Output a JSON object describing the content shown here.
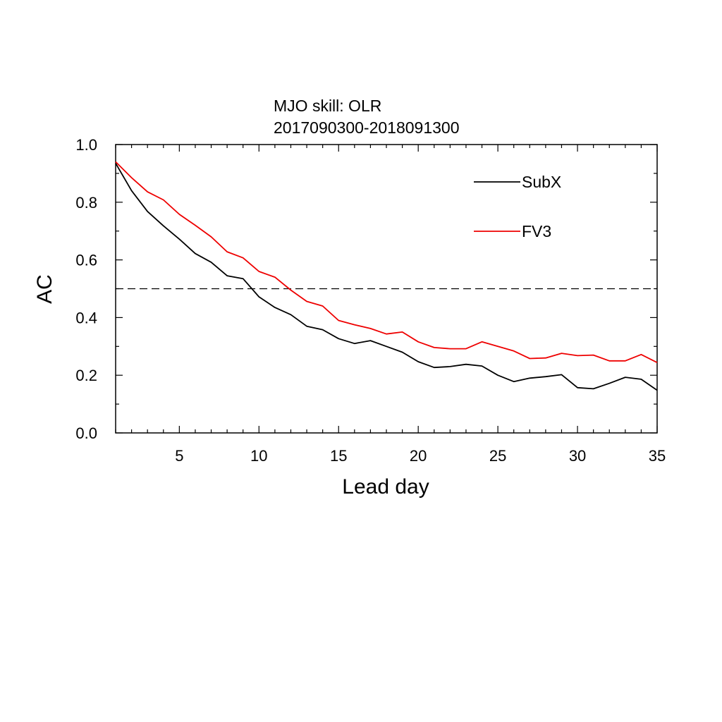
{
  "chart_data": {
    "type": "line",
    "title": "MJO skill: OLR",
    "subtitle": "2017090300-2018091300",
    "xlabel": "Lead day",
    "ylabel": "AC",
    "xlim": [
      1,
      35
    ],
    "ylim": [
      0.0,
      1.0
    ],
    "x_ticks": [
      5,
      10,
      15,
      20,
      25,
      30,
      35
    ],
    "y_ticks": [
      "0.0",
      "0.2",
      "0.4",
      "0.6",
      "0.8",
      "1.0"
    ],
    "reference_line": {
      "y": 0.5,
      "style": "dashed",
      "color": "#000000"
    },
    "legend_position": "top-right",
    "grid": false,
    "x": [
      1,
      2,
      3,
      4,
      5,
      6,
      7,
      8,
      9,
      10,
      11,
      12,
      13,
      14,
      15,
      16,
      17,
      18,
      19,
      20,
      21,
      22,
      23,
      24,
      25,
      26,
      27,
      28,
      29,
      30,
      31,
      32,
      33,
      34,
      35
    ],
    "series": [
      {
        "name": "SubX",
        "color": "#000000",
        "values": [
          0.935,
          0.84,
          0.768,
          0.718,
          0.672,
          0.622,
          0.592,
          0.545,
          0.535,
          0.472,
          0.435,
          0.41,
          0.37,
          0.358,
          0.327,
          0.31,
          0.32,
          0.3,
          0.28,
          0.247,
          0.227,
          0.23,
          0.238,
          0.232,
          0.2,
          0.178,
          0.19,
          0.195,
          0.202,
          0.157,
          0.153,
          0.172,
          0.193,
          0.186,
          0.148
        ]
      },
      {
        "name": "FV3",
        "color": "#ee0000",
        "values": [
          0.94,
          0.885,
          0.836,
          0.808,
          0.758,
          0.72,
          0.68,
          0.628,
          0.607,
          0.56,
          0.54,
          0.495,
          0.456,
          0.44,
          0.39,
          0.375,
          0.362,
          0.343,
          0.35,
          0.316,
          0.296,
          0.292,
          0.292,
          0.316,
          0.3,
          0.284,
          0.258,
          0.26,
          0.276,
          0.268,
          0.27,
          0.25,
          0.25,
          0.272,
          0.244
        ]
      }
    ]
  }
}
